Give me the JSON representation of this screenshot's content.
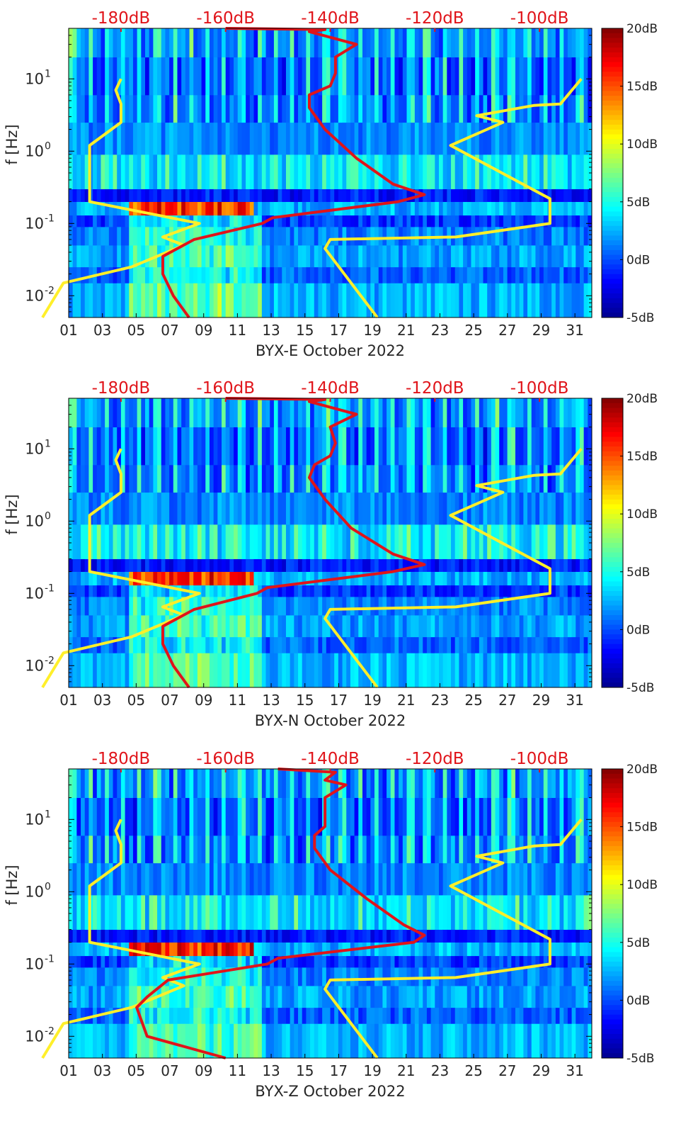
{
  "colors": {
    "model_line": "#ffef2a",
    "psd_line": "#e0141a",
    "top_label": "#e0141a",
    "axis": "#000000",
    "colormap": [
      "#00008f",
      "#0000ff",
      "#0080ff",
      "#00ffff",
      "#80ff80",
      "#ffff00",
      "#ff8000",
      "#ff0000",
      "#800000"
    ]
  },
  "chart_data": [
    {
      "type": "heatmap",
      "title": "",
      "xlabel": "BYX-E October 2022",
      "ylabel": "f [Hz]",
      "x_ticks": [
        "01",
        "03",
        "05",
        "07",
        "09",
        "11",
        "13",
        "15",
        "17",
        "19",
        "21",
        "23",
        "25",
        "27",
        "29",
        "31"
      ],
      "y_ticks": [
        "10^-2",
        "10^-1",
        "10^0",
        "10^1"
      ],
      "xlim": [
        1,
        32
      ],
      "ylim_hz": [
        0.005,
        50
      ],
      "top_axis": {
        "labels": [
          "-180dB",
          "-160dB",
          "-140dB",
          "-120dB",
          "-100dB"
        ],
        "range_db": [
          -190,
          -90
        ]
      },
      "colorbar": {
        "labels": [
          "20dB",
          "15dB",
          "10dB",
          "5dB",
          "0dB",
          "-5dB"
        ],
        "range_db": [
          -5,
          20
        ]
      },
      "series": [
        {
          "name": "noise-model-low",
          "color": "yellow",
          "db": [
            -195,
            -191,
            -178,
            -168,
            -172,
            -165,
            -186,
            -186,
            -180,
            -180,
            -181,
            -180
          ],
          "hz": [
            0.005,
            0.015,
            0.025,
            0.05,
            0.065,
            0.1,
            0.2,
            1.2,
            2.5,
            4.5,
            7,
            10
          ]
        },
        {
          "name": "noise-model-high",
          "color": "yellow",
          "db": [
            -131,
            -141,
            -140,
            -116,
            -98,
            -98,
            -117,
            -107,
            -112,
            -101,
            -96,
            -92
          ],
          "hz": [
            0.005,
            0.045,
            0.06,
            0.065,
            0.1,
            0.22,
            1.2,
            2.5,
            3.1,
            4.3,
            4.5,
            10
          ]
        },
        {
          "name": "psd-median",
          "color": "red",
          "db": [
            -167,
            -170,
            -172,
            -172,
            -166,
            -153,
            -151,
            -127,
            -122,
            -128,
            -135,
            -141,
            -144,
            -144,
            -140,
            -139,
            -139,
            -135,
            -144,
            -141,
            -160
          ],
          "hz": [
            0.005,
            0.01,
            0.02,
            0.035,
            0.06,
            0.1,
            0.12,
            0.2,
            0.25,
            0.35,
            0.8,
            2,
            4,
            6,
            8,
            12,
            20,
            30,
            45,
            48,
            50
          ]
        }
      ]
    },
    {
      "type": "heatmap",
      "title": "",
      "xlabel": "BYX-N October 2022",
      "ylabel": "f [Hz]",
      "x_ticks": [
        "01",
        "03",
        "05",
        "07",
        "09",
        "11",
        "13",
        "15",
        "17",
        "19",
        "21",
        "23",
        "25",
        "27",
        "29",
        "31"
      ],
      "y_ticks": [
        "10^-2",
        "10^-1",
        "10^0",
        "10^1"
      ],
      "xlim": [
        1,
        32
      ],
      "ylim_hz": [
        0.005,
        50
      ],
      "top_axis": {
        "labels": [
          "-180dB",
          "-160dB",
          "-140dB",
          "-120dB",
          "-100dB"
        ],
        "range_db": [
          -190,
          -90
        ]
      },
      "colorbar": {
        "labels": [
          "20dB",
          "15dB",
          "10dB",
          "5dB",
          "0dB",
          "-5dB"
        ],
        "range_db": [
          -5,
          20
        ]
      },
      "series": [
        {
          "name": "noise-model-low",
          "color": "yellow",
          "db": [
            -195,
            -191,
            -178,
            -168,
            -172,
            -165,
            -186,
            -186,
            -180,
            -180,
            -181,
            -180
          ],
          "hz": [
            0.005,
            0.015,
            0.025,
            0.05,
            0.065,
            0.1,
            0.2,
            1.2,
            2.5,
            4.5,
            7,
            10
          ]
        },
        {
          "name": "noise-model-high",
          "color": "yellow",
          "db": [
            -131,
            -141,
            -140,
            -116,
            -98,
            -98,
            -117,
            -107,
            -112,
            -101,
            -96,
            -92
          ],
          "hz": [
            0.005,
            0.045,
            0.06,
            0.065,
            0.1,
            0.22,
            1.2,
            2.5,
            3.1,
            4.3,
            4.5,
            10
          ]
        },
        {
          "name": "psd-median",
          "color": "red",
          "db": [
            -167,
            -170,
            -172,
            -172,
            -166,
            -154,
            -152,
            -128,
            -122,
            -128,
            -136,
            -141,
            -144,
            -143,
            -140,
            -139,
            -140,
            -135,
            -144,
            -141,
            -160
          ],
          "hz": [
            0.005,
            0.01,
            0.02,
            0.035,
            0.06,
            0.1,
            0.12,
            0.2,
            0.25,
            0.35,
            0.8,
            2,
            4,
            6,
            8,
            12,
            20,
            30,
            45,
            48,
            50
          ]
        }
      ]
    },
    {
      "type": "heatmap",
      "title": "",
      "xlabel": "BYX-Z October 2022",
      "ylabel": "f [Hz]",
      "x_ticks": [
        "01",
        "03",
        "05",
        "07",
        "09",
        "11",
        "13",
        "15",
        "17",
        "19",
        "21",
        "23",
        "25",
        "27",
        "29",
        "31"
      ],
      "y_ticks": [
        "10^-2",
        "10^-1",
        "10^0",
        "10^1"
      ],
      "xlim": [
        1,
        32
      ],
      "ylim_hz": [
        0.005,
        50
      ],
      "top_axis": {
        "labels": [
          "-180dB",
          "-160dB",
          "-140dB",
          "-120dB",
          "-100dB"
        ],
        "range_db": [
          -190,
          -90
        ]
      },
      "colorbar": {
        "labels": [
          "20dB",
          "15dB",
          "10dB",
          "5dB",
          "0dB",
          "-5dB"
        ],
        "range_db": [
          -5,
          20
        ]
      },
      "series": [
        {
          "name": "noise-model-low",
          "color": "yellow",
          "db": [
            -195,
            -191,
            -178,
            -168,
            -172,
            -165,
            -186,
            -186,
            -180,
            -180,
            -181,
            -180
          ],
          "hz": [
            0.005,
            0.015,
            0.025,
            0.05,
            0.065,
            0.1,
            0.2,
            1.2,
            2.5,
            4.5,
            7,
            10
          ]
        },
        {
          "name": "noise-model-high",
          "color": "yellow",
          "db": [
            -131,
            -141,
            -140,
            -116,
            -98,
            -98,
            -117,
            -107,
            -112,
            -101,
            -96,
            -92
          ],
          "hz": [
            0.005,
            0.045,
            0.06,
            0.065,
            0.1,
            0.22,
            1.2,
            2.5,
            3.1,
            4.3,
            4.5,
            10
          ]
        },
        {
          "name": "psd-median",
          "color": "red",
          "db": [
            -160,
            -175,
            -177,
            -175,
            -171,
            -152,
            -150,
            -124,
            -122,
            -126,
            -133,
            -140,
            -143,
            -143,
            -141,
            -141,
            -141,
            -137,
            -141,
            -139,
            -150
          ],
          "hz": [
            0.005,
            0.01,
            0.025,
            0.035,
            0.06,
            0.1,
            0.12,
            0.2,
            0.25,
            0.35,
            0.8,
            2,
            4,
            6,
            8,
            12,
            20,
            30,
            35,
            45,
            50
          ]
        }
      ]
    }
  ]
}
